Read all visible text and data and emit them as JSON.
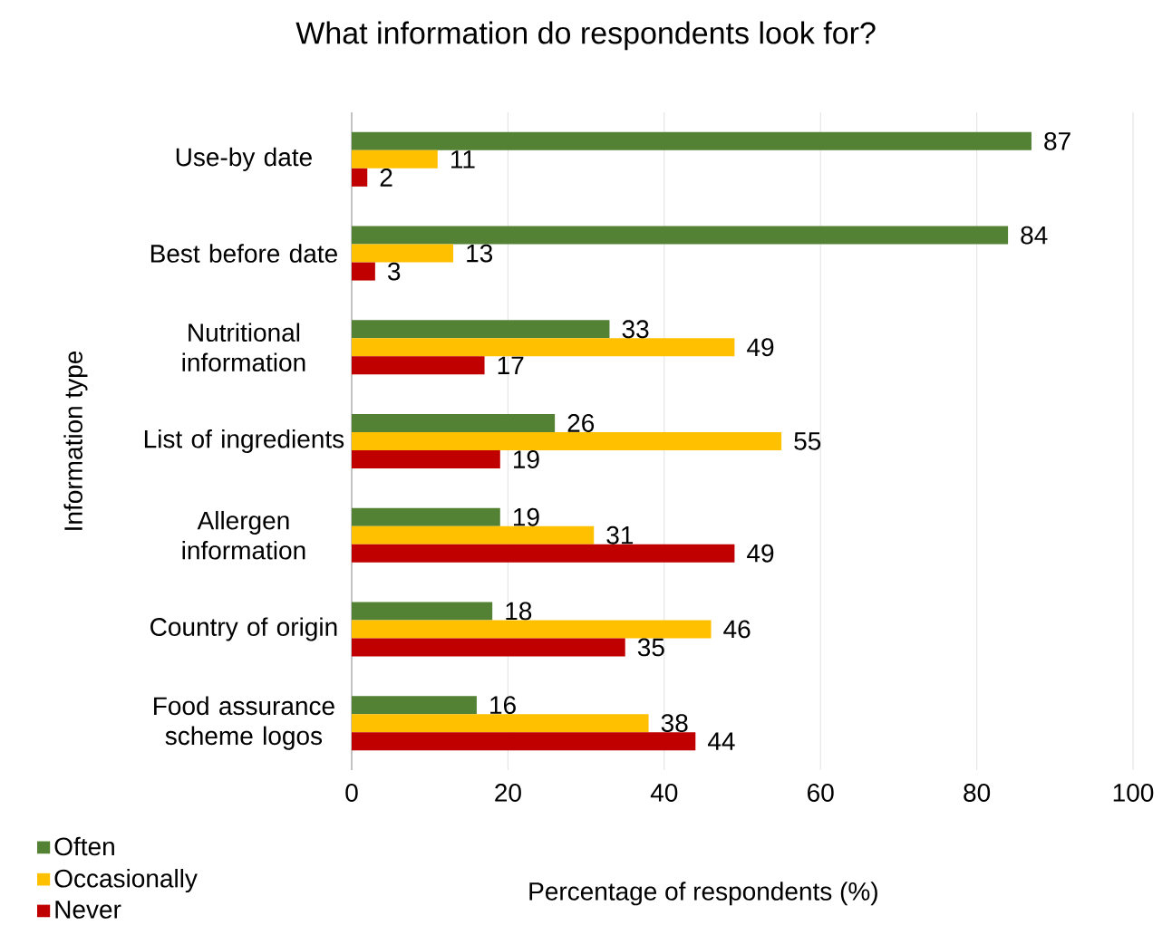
{
  "chart_data": {
    "type": "bar",
    "orientation": "horizontal",
    "title": "What information do respondents look for?",
    "xlabel": "Percentage of respondents (%)",
    "ylabel": "Information type",
    "categories": [
      "Use-by date",
      "Best before date",
      "Nutritional information",
      "List of ingredients",
      "Allergen information",
      "Country of origin",
      "Food assurance scheme logos"
    ],
    "series": [
      {
        "name": "Often",
        "color": "#548235",
        "values": [
          87,
          84,
          33,
          26,
          19,
          18,
          16
        ]
      },
      {
        "name": "Occasionally",
        "color": "#ffc000",
        "values": [
          11,
          13,
          49,
          55,
          31,
          46,
          38
        ]
      },
      {
        "name": "Never",
        "color": "#c00000",
        "values": [
          2,
          3,
          17,
          19,
          49,
          35,
          44
        ]
      }
    ],
    "xlim": [
      0,
      100
    ],
    "xticks": [
      0,
      20,
      40,
      60,
      80,
      100
    ],
    "grid": "x",
    "legend": "bottom left",
    "data_labels": true
  }
}
